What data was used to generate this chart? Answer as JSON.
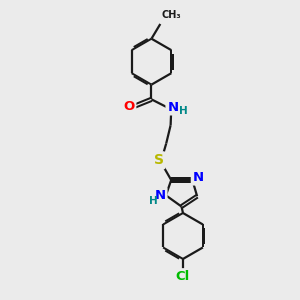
{
  "bg_color": "#ebebeb",
  "bond_color": "#1a1a1a",
  "line_width": 1.6,
  "atom_colors": {
    "O": "#ff0000",
    "N": "#0000ff",
    "S": "#b8b800",
    "Cl": "#00bb00",
    "C": "#1a1a1a",
    "H": "#008888"
  },
  "font_size": 8.5,
  "figsize": [
    3.0,
    3.0
  ],
  "dpi": 100
}
